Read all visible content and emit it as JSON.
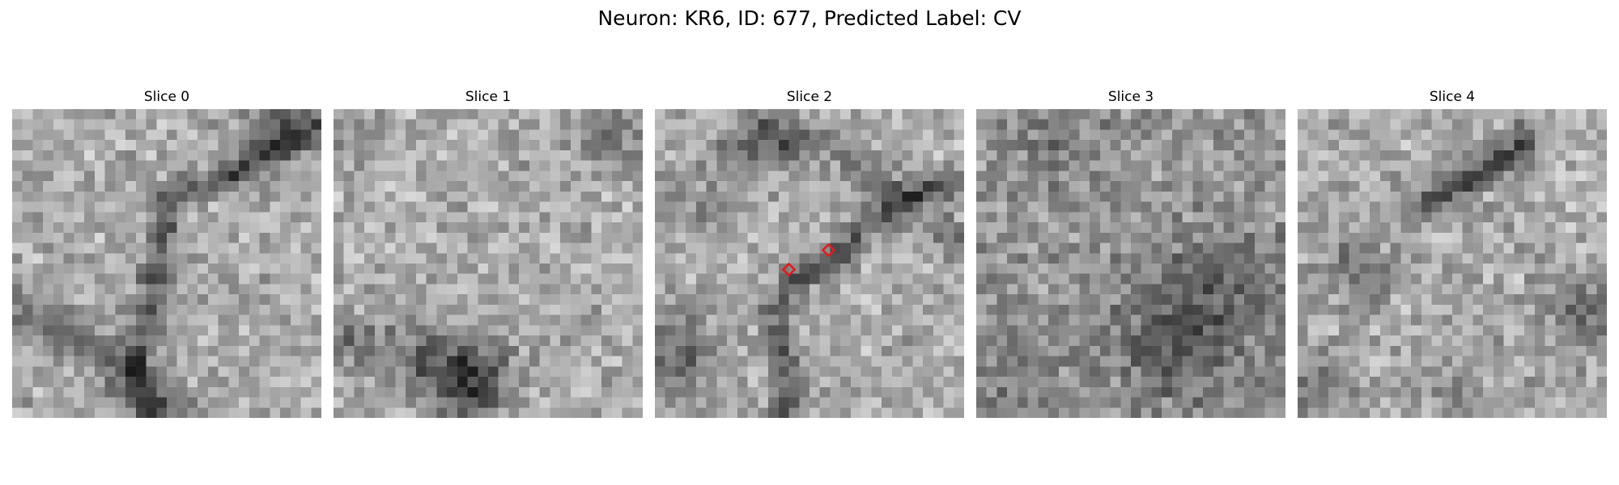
{
  "figure": {
    "title": "Neuron: KR6, ID: 677, Predicted Label: CV",
    "marker_color": "#e41a1c",
    "colormap": "gray"
  },
  "slices": [
    {
      "title": "Slice 0"
    },
    {
      "title": "Slice 1"
    },
    {
      "title": "Slice 2"
    },
    {
      "title": "Slice 3"
    },
    {
      "title": "Slice 4"
    }
  ]
}
